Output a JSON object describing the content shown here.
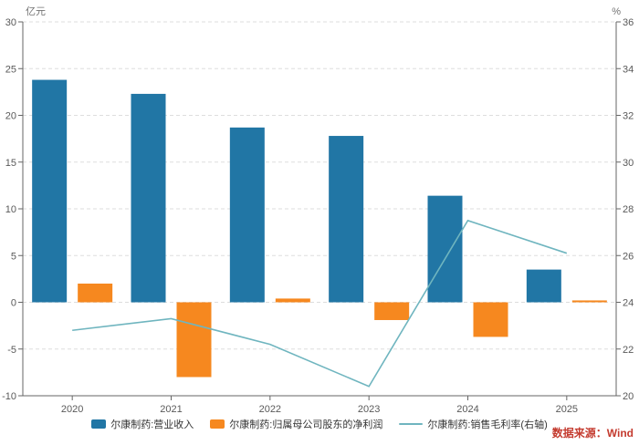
{
  "chart_data": {
    "type": "combo",
    "title": "",
    "categories": [
      "2020",
      "2021",
      "2022",
      "2023",
      "2024",
      "2025"
    ],
    "series": [
      {
        "name": "尔康制药:营业收入",
        "type": "bar",
        "axis": "left",
        "color": "#2176A5",
        "values": [
          23.8,
          22.3,
          18.7,
          17.8,
          11.4,
          3.5
        ]
      },
      {
        "name": "尔康制药:归属母公司股东的净利润",
        "type": "bar",
        "axis": "left",
        "color": "#F6881F",
        "values": [
          2.0,
          -8.0,
          0.4,
          -1.9,
          -3.7,
          0.2
        ]
      },
      {
        "name": "尔康制药:销售毛利率(右轴)",
        "type": "line",
        "axis": "right",
        "color": "#6FB5BF",
        "values": [
          22.8,
          23.3,
          22.2,
          20.4,
          27.5,
          26.1
        ]
      }
    ],
    "left_axis": {
      "unit": "亿元",
      "min": -10,
      "max": 30,
      "ticks": [
        30,
        25,
        20,
        15,
        10,
        5,
        0,
        -5,
        -10
      ]
    },
    "right_axis": {
      "unit": "%",
      "min": 20,
      "max": 36,
      "ticks": [
        36,
        34,
        32,
        30,
        28,
        26,
        24,
        22,
        20
      ]
    },
    "grid": true,
    "legend_position": "bottom",
    "source": "数据来源：Wind",
    "colors": {
      "source_text": "#C43B2F",
      "axis_line": "#666666",
      "tick_label": "#595959",
      "gridline": "#DDDDDD"
    }
  }
}
